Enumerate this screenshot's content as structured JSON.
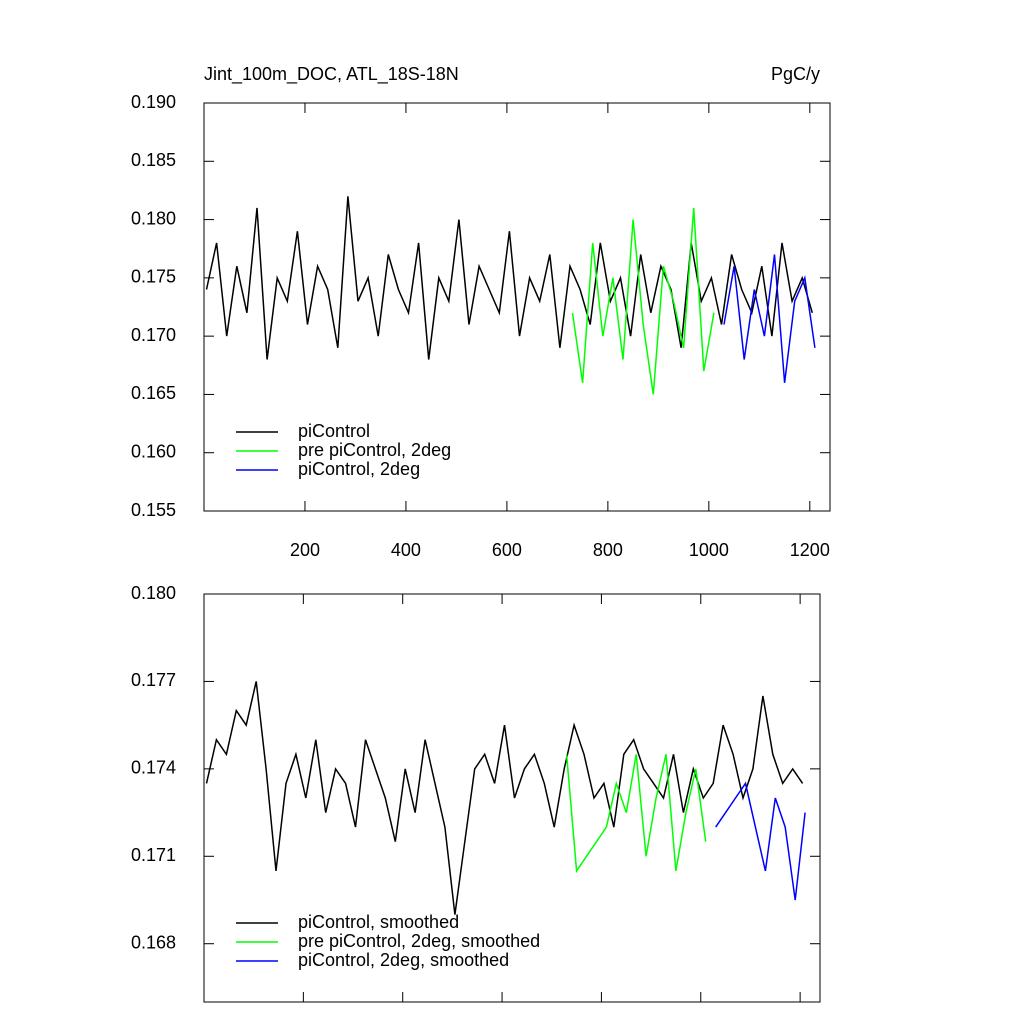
{
  "chart_data": [
    {
      "type": "line",
      "title": "Jint_100m_DOC, ATL_18S-18N",
      "units": "PgC/y",
      "xlim": [
        0,
        1240
      ],
      "xticks": [
        200,
        400,
        600,
        800,
        1000,
        1200
      ],
      "ylim": [
        0.155,
        0.19
      ],
      "yticks": [
        {
          "value": 0.155,
          "label": "0.155"
        },
        {
          "value": 0.16,
          "label": "0.160"
        },
        {
          "value": 0.165,
          "label": "0.165"
        },
        {
          "value": 0.17,
          "label": "0.170"
        },
        {
          "value": 0.175,
          "label": "0.175"
        },
        {
          "value": 0.18,
          "label": "0.180"
        },
        {
          "value": 0.185,
          "label": "0.185"
        },
        {
          "value": 0.19,
          "label": "0.190"
        }
      ],
      "legend": "lower left",
      "series": [
        {
          "name": "piControl",
          "color": "#000000",
          "x": [
            5,
            25,
            45,
            65,
            85,
            105,
            125,
            145,
            165,
            185,
            205,
            225,
            245,
            265,
            285,
            305,
            325,
            345,
            365,
            385,
            405,
            425,
            445,
            465,
            485,
            505,
            525,
            545,
            565,
            585,
            605,
            625,
            645,
            665,
            685,
            705,
            725,
            745,
            765,
            785,
            805,
            825,
            845,
            865,
            885,
            905,
            925,
            945,
            965,
            985,
            1005,
            1025,
            1045,
            1065,
            1085,
            1105,
            1125,
            1145,
            1165,
            1185,
            1205
          ],
          "values": [
            0.174,
            0.178,
            0.17,
            0.176,
            0.172,
            0.181,
            0.168,
            0.175,
            0.173,
            0.179,
            0.171,
            0.176,
            0.174,
            0.169,
            0.182,
            0.173,
            0.175,
            0.17,
            0.177,
            0.174,
            0.172,
            0.178,
            0.168,
            0.175,
            0.173,
            0.18,
            0.171,
            0.176,
            0.174,
            0.172,
            0.179,
            0.17,
            0.175,
            0.173,
            0.177,
            0.169,
            0.176,
            0.174,
            0.171,
            0.178,
            0.173,
            0.175,
            0.17,
            0.177,
            0.172,
            0.176,
            0.174,
            0.169,
            0.178,
            0.173,
            0.175,
            0.171,
            0.177,
            0.174,
            0.172,
            0.176,
            0.17,
            0.178,
            0.173,
            0.175,
            0.172
          ]
        },
        {
          "name": "pre piControl, 2deg",
          "color": "#00ff00",
          "x": [
            730,
            750,
            770,
            790,
            810,
            830,
            850,
            870,
            890,
            910,
            930,
            950,
            970,
            990,
            1010
          ],
          "values": [
            0.172,
            0.166,
            0.178,
            0.17,
            0.175,
            0.168,
            0.18,
            0.171,
            0.165,
            0.176,
            0.173,
            0.169,
            0.181,
            0.167,
            0.172
          ]
        },
        {
          "name": "piControl, 2deg",
          "color": "#0000ff",
          "x": [
            1030,
            1050,
            1070,
            1090,
            1110,
            1130,
            1150,
            1170,
            1190,
            1210
          ],
          "values": [
            0.171,
            0.176,
            0.168,
            0.174,
            0.17,
            0.177,
            0.166,
            0.173,
            0.175,
            0.169
          ]
        }
      ]
    },
    {
      "type": "line",
      "xlim": [
        0,
        1240
      ],
      "xticks": [
        200,
        400,
        600,
        800,
        1000,
        1200
      ],
      "ylim": [
        0.166,
        0.18
      ],
      "yticks": [
        {
          "value": 0.168,
          "label": "0.168"
        },
        {
          "value": 0.171,
          "label": "0.171"
        },
        {
          "value": 0.174,
          "label": "0.174"
        },
        {
          "value": 0.177,
          "label": "0.177"
        },
        {
          "value": 0.18,
          "label": "0.180"
        }
      ],
      "legend": "lower left",
      "series": [
        {
          "name": "piControl, smoothed",
          "color": "#000000",
          "x": [
            5,
            25,
            45,
            65,
            85,
            105,
            125,
            145,
            165,
            185,
            205,
            225,
            245,
            265,
            285,
            305,
            325,
            345,
            365,
            385,
            405,
            425,
            445,
            465,
            485,
            505,
            525,
            545,
            565,
            585,
            605,
            625,
            645,
            665,
            685,
            705,
            725,
            745,
            765,
            785,
            805,
            825,
            845,
            865,
            885,
            905,
            925,
            945,
            965,
            985,
            1005,
            1025,
            1045,
            1065,
            1085,
            1105,
            1125,
            1145,
            1165,
            1185,
            1205
          ],
          "values": [
            0.1735,
            0.175,
            0.1745,
            0.176,
            0.1755,
            0.177,
            0.174,
            0.1705,
            0.1735,
            0.1745,
            0.173,
            0.175,
            0.1725,
            0.174,
            0.1735,
            0.172,
            0.175,
            0.174,
            0.173,
            0.1715,
            0.174,
            0.1725,
            0.175,
            0.1735,
            0.172,
            0.169,
            0.1715,
            0.174,
            0.1745,
            0.1735,
            0.1755,
            0.173,
            0.174,
            0.1745,
            0.1735,
            0.172,
            0.174,
            0.1755,
            0.1745,
            0.173,
            0.1735,
            0.172,
            0.1745,
            0.175,
            0.174,
            0.1735,
            0.173,
            0.1745,
            0.1725,
            0.174,
            0.173,
            0.1735,
            0.1755,
            0.1745,
            0.173,
            0.174,
            0.1765,
            0.1745,
            0.1735,
            0.174,
            0.1735
          ]
        },
        {
          "name": "pre piControl, 2deg, smoothed",
          "color": "#00ff00",
          "x": [
            730,
            750,
            770,
            790,
            810,
            830,
            850,
            870,
            890,
            910,
            930,
            950,
            970,
            990,
            1010
          ],
          "values": [
            0.1745,
            0.1705,
            0.171,
            0.1715,
            0.172,
            0.1735,
            0.1725,
            0.1745,
            0.171,
            0.173,
            0.1745,
            0.1705,
            0.1725,
            0.174,
            0.1715
          ]
        },
        {
          "name": "piControl, 2deg, smoothed",
          "color": "#0000ff",
          "x": [
            1030,
            1050,
            1070,
            1090,
            1110,
            1130,
            1150,
            1170,
            1190,
            1210
          ],
          "values": [
            0.172,
            0.1725,
            0.173,
            0.1735,
            0.172,
            0.1705,
            0.173,
            0.172,
            0.1695,
            0.1725
          ]
        }
      ]
    }
  ]
}
